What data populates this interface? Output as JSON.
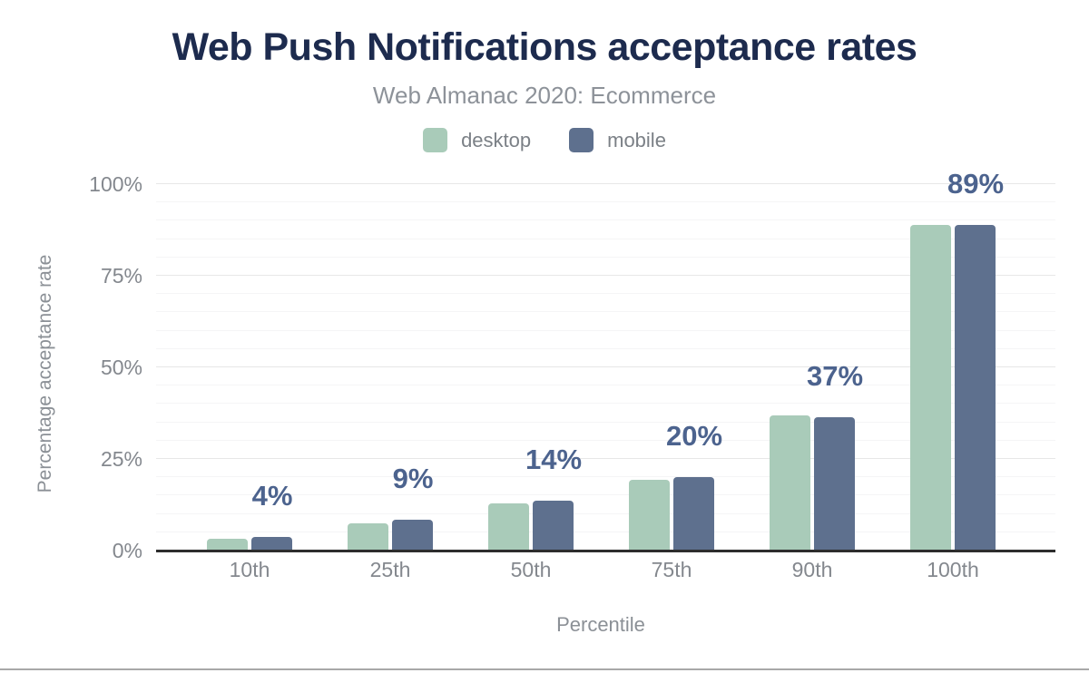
{
  "header": {
    "title": "Web Push Notifications acceptance rates",
    "subtitle": "Web Almanac 2020: Ecommerce"
  },
  "legend": [
    {
      "label": "desktop",
      "color": "#a9cbb9"
    },
    {
      "label": "mobile",
      "color": "#5e708e"
    }
  ],
  "chart_data": {
    "type": "bar",
    "title": "Web Push Notifications acceptance rates",
    "subtitle": "Web Almanac 2020: Ecommerce",
    "categories": [
      "10th",
      "25th",
      "50th",
      "75th",
      "90th",
      "100th"
    ],
    "series": [
      {
        "name": "desktop",
        "color": "#a9cbb9",
        "values": [
          3.3,
          7.4,
          12.9,
          19.3,
          36.9,
          88.9
        ]
      },
      {
        "name": "mobile",
        "color": "#5e708e",
        "values": [
          3.6,
          8.5,
          13.6,
          20.0,
          36.5,
          88.9
        ]
      }
    ],
    "bar_labels": [
      "4%",
      "9%",
      "14%",
      "20%",
      "37%",
      "89%"
    ],
    "xlabel": "Percentile",
    "ylabel": "Percentage acceptance rate",
    "ylim": [
      0,
      100
    ],
    "yticks": [
      0,
      25,
      50,
      75,
      100
    ],
    "ytick_labels": [
      "0%",
      "25%",
      "50%",
      "75%",
      "100%"
    ],
    "minor_grid_step": 5,
    "grid": true,
    "legend_position": "top",
    "label_color": "#4c638e",
    "title_color": "#1d2b4e"
  }
}
